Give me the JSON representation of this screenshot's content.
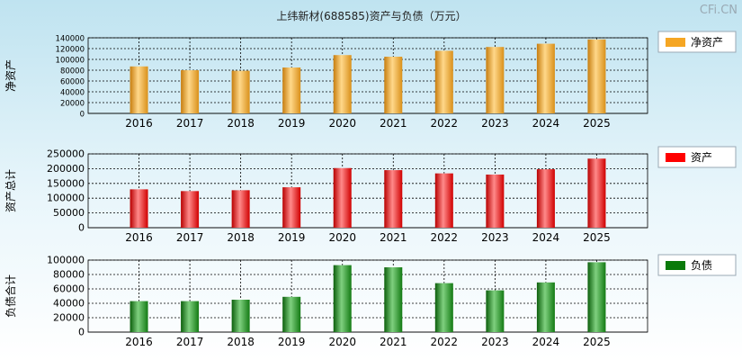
{
  "title": "上纬新材(688585)资产与负债（万元）",
  "watermark": "CFi.CN",
  "colors": {
    "net_assets": "#f5a623",
    "total_assets": "#ff0000",
    "total_liabilities": "#0a7a0a",
    "grid": "#000000"
  },
  "chart_data": [
    {
      "type": "bar",
      "ylabel": "净资产",
      "categories": [
        "2016",
        "2017",
        "2018",
        "2019",
        "2020",
        "2021",
        "2022",
        "2023",
        "2024",
        "2025"
      ],
      "series": [
        {
          "name": "净资产",
          "values": [
            87000,
            80000,
            79000,
            85000,
            108000,
            105000,
            116000,
            123000,
            129000,
            137000
          ]
        }
      ],
      "ylim": [
        0,
        140000
      ],
      "yticks": [
        "0",
        "20000",
        "40000",
        "60000",
        "80000",
        "100000",
        "120000",
        "140000"
      ],
      "legend": "right",
      "grid": true
    },
    {
      "type": "bar",
      "ylabel": "资产总计",
      "categories": [
        "2016",
        "2017",
        "2018",
        "2019",
        "2020",
        "2021",
        "2022",
        "2023",
        "2024",
        "2025"
      ],
      "series": [
        {
          "name": "资产",
          "values": [
            130000,
            124000,
            127000,
            137000,
            202000,
            195000,
            184000,
            180000,
            198000,
            234000
          ]
        }
      ],
      "ylim": [
        0,
        250000
      ],
      "yticks": [
        "0",
        "50000",
        "100000",
        "150000",
        "200000",
        "250000"
      ],
      "legend": "right",
      "grid": true
    },
    {
      "type": "bar",
      "ylabel": "负债合计",
      "categories": [
        "2016",
        "2017",
        "2018",
        "2019",
        "2020",
        "2021",
        "2022",
        "2023",
        "2024",
        "2025"
      ],
      "series": [
        {
          "name": "负债",
          "values": [
            43000,
            43000,
            45000,
            49000,
            93000,
            90000,
            68000,
            58000,
            69000,
            97000
          ]
        }
      ],
      "ylim": [
        0,
        100000
      ],
      "yticks": [
        "0",
        "20000",
        "40000",
        "60000",
        "80000",
        "100000"
      ],
      "legend": "right",
      "grid": true
    }
  ]
}
